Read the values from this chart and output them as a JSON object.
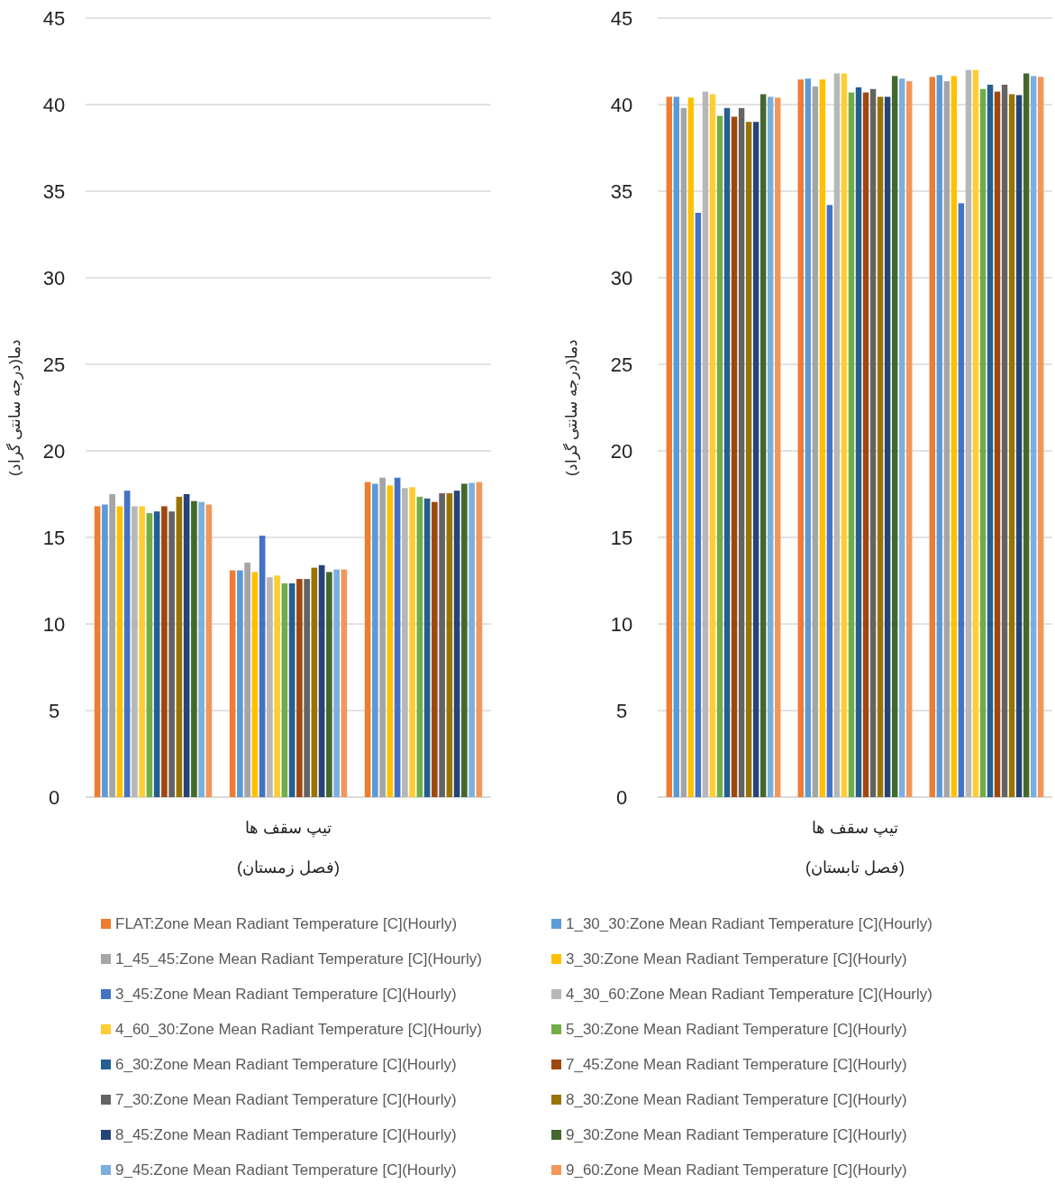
{
  "chart_data": [
    {
      "type": "bar",
      "xlabel": "تیپ سقف ها",
      "ylabel": "دما(درجه سانتی گراد)",
      "annotations": [
        "(فصل زمستان)"
      ],
      "categories": [
        null,
        null,
        null
      ],
      "ylim": [
        0,
        45
      ],
      "yticks": [
        0,
        5,
        10,
        15,
        20,
        25,
        30,
        35,
        40,
        45
      ],
      "grid": "y",
      "legend": "bottom",
      "series": [
        {
          "name": "FLAT:Zone Mean Radiant Temperature [C](Hourly)",
          "color": "#ed7d31",
          "values": [
            16.8,
            13.1,
            18.2
          ]
        },
        {
          "name": "1_30_30:Zone Mean Radiant Temperature [C](Hourly)",
          "color": "#5b9bd5",
          "values": [
            16.9,
            13.1,
            18.1
          ]
        },
        {
          "name": "1_45_45:Zone Mean Radiant Temperature [C](Hourly)",
          "color": "#a5a5a5",
          "values": [
            17.5,
            13.55,
            18.45
          ]
        },
        {
          "name": "3_30:Zone Mean Radiant Temperature [C](Hourly)",
          "color": "#ffc000",
          "values": [
            16.8,
            13.0,
            18.0
          ]
        },
        {
          "name": "3_45:Zone Mean Radiant Temperature [C](Hourly)",
          "color": "#4472c4",
          "values": [
            17.7,
            15.1,
            18.45
          ]
        },
        {
          "name": "4_30_60:Zone Mean Radiant Temperature [C](Hourly)",
          "color": "#b7b7b7",
          "values": [
            16.8,
            12.7,
            17.85
          ]
        },
        {
          "name": "4_60_30:Zone Mean Radiant Temperature [C](Hourly)",
          "color": "#ffcd33",
          "values": [
            16.8,
            12.8,
            17.9
          ]
        },
        {
          "name": "5_30:Zone Mean Radiant Temperature [C](Hourly)",
          "color": "#70ad47",
          "values": [
            16.4,
            12.35,
            17.35
          ]
        },
        {
          "name": "6_30:Zone Mean Radiant Temperature [C](Hourly)",
          "color": "#255e91",
          "values": [
            16.5,
            12.35,
            17.25
          ]
        },
        {
          "name": "7_45:Zone Mean Radiant Temperature [C](Hourly)",
          "color": "#9e480e",
          "values": [
            16.8,
            12.6,
            17.05
          ]
        },
        {
          "name": "7_30:Zone Mean Radiant Temperature [C](Hourly)",
          "color": "#636363",
          "values": [
            16.5,
            12.6,
            17.55
          ]
        },
        {
          "name": "8_30:Zone Mean Radiant Temperature [C](Hourly)",
          "color": "#997300",
          "values": [
            17.35,
            13.25,
            17.55
          ]
        },
        {
          "name": "8_45:Zone Mean Radiant Temperature [C](Hourly)",
          "color": "#264478",
          "values": [
            17.5,
            13.4,
            17.7
          ]
        },
        {
          "name": "9_30:Zone Mean Radiant Temperature [C](Hourly)",
          "color": "#43682b",
          "values": [
            17.1,
            13.0,
            18.1
          ]
        },
        {
          "name": "9_45:Zone Mean Radiant Temperature [C](Hourly)",
          "color": "#7cafdd",
          "values": [
            17.05,
            13.15,
            18.15
          ]
        },
        {
          "name": "9_60:Zone Mean Radiant Temperature [C](Hourly)",
          "color": "#f1975a",
          "values": [
            16.9,
            13.15,
            18.2
          ]
        }
      ]
    },
    {
      "type": "bar",
      "xlabel": "تیپ سقف ها",
      "ylabel": "دما(درجه سانتی گراد)",
      "annotations": [
        "(فصل تابستان)"
      ],
      "categories": [
        null,
        null,
        null
      ],
      "ylim": [
        0,
        45
      ],
      "yticks": [
        0,
        5,
        10,
        15,
        20,
        25,
        30,
        35,
        40,
        45
      ],
      "grid": "y",
      "series": [
        {
          "color": "#ed7d31",
          "values": [
            40.45,
            41.45,
            41.6
          ]
        },
        {
          "color": "#5b9bd5",
          "values": [
            40.45,
            41.5,
            41.7
          ]
        },
        {
          "color": "#a5a5a5",
          "values": [
            39.8,
            41.05,
            41.35
          ]
        },
        {
          "color": "#ffc000",
          "values": [
            40.4,
            41.45,
            41.65
          ]
        },
        {
          "color": "#4472c4",
          "values": [
            33.75,
            34.2,
            34.3
          ]
        },
        {
          "color": "#b7b7b7",
          "values": [
            40.75,
            41.8,
            42.0
          ]
        },
        {
          "color": "#ffcd33",
          "values": [
            40.6,
            41.8,
            42.0
          ]
        },
        {
          "color": "#70ad47",
          "values": [
            39.35,
            40.7,
            40.9
          ]
        },
        {
          "color": "#255e91",
          "values": [
            39.8,
            41.0,
            41.15
          ]
        },
        {
          "color": "#9e480e",
          "values": [
            39.3,
            40.7,
            40.75
          ]
        },
        {
          "color": "#636363",
          "values": [
            39.8,
            40.9,
            41.15
          ]
        },
        {
          "color": "#997300",
          "values": [
            39.0,
            40.45,
            40.6
          ]
        },
        {
          "color": "#264478",
          "values": [
            39.0,
            40.45,
            40.55
          ]
        },
        {
          "color": "#43682b",
          "values": [
            40.6,
            41.65,
            41.8
          ]
        },
        {
          "color": "#7cafdd",
          "values": [
            40.45,
            41.5,
            41.65
          ]
        },
        {
          "color": "#f1975a",
          "values": [
            40.4,
            41.35,
            41.6
          ]
        }
      ]
    }
  ]
}
